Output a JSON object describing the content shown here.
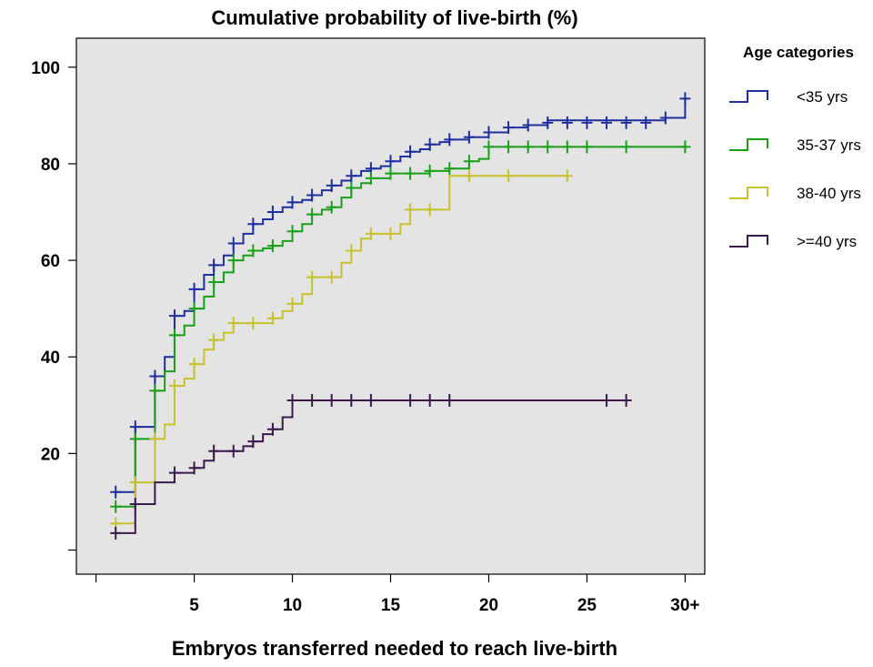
{
  "chart_data": {
    "type": "line",
    "step": true,
    "title": "Cumulative probability of live-birth (%)",
    "xlabel": "Embryos transferred needed to reach live-birth",
    "ylabel": "",
    "xlim": [
      -1,
      31
    ],
    "ylim": [
      -5,
      106
    ],
    "x_ticks": [
      0,
      5,
      10,
      15,
      20,
      25,
      30
    ],
    "x_tick_labels": [
      "",
      "5",
      "10",
      "15",
      "20",
      "25",
      "30+"
    ],
    "y_ticks": [
      0,
      20,
      40,
      60,
      80,
      100
    ],
    "y_tick_labels": [
      "",
      "20",
      "40",
      "60",
      "80",
      "100"
    ],
    "grid": false,
    "background": "#e4e4e4",
    "legend": {
      "title": "Age categories",
      "position": "right"
    },
    "series": [
      {
        "name": "<35 yrs",
        "color": "#1f2f9e",
        "points": [
          [
            1,
            12
          ],
          [
            2,
            25.5
          ],
          [
            3,
            36
          ],
          [
            3.5,
            40
          ],
          [
            4,
            48.5
          ],
          [
            4.5,
            49.5
          ],
          [
            5,
            54
          ],
          [
            5.5,
            57
          ],
          [
            6,
            59
          ],
          [
            6.5,
            61
          ],
          [
            7,
            63.5
          ],
          [
            7.5,
            65.5
          ],
          [
            8,
            67.5
          ],
          [
            8.5,
            68.5
          ],
          [
            9,
            70
          ],
          [
            9.5,
            71
          ],
          [
            10,
            72
          ],
          [
            10.5,
            72.5
          ],
          [
            11,
            73.5
          ],
          [
            11.5,
            74.5
          ],
          [
            12,
            75.5
          ],
          [
            12.5,
            76.5
          ],
          [
            13,
            77.5
          ],
          [
            13.5,
            78.5
          ],
          [
            14,
            79
          ],
          [
            14.5,
            79.5
          ],
          [
            15,
            80.5
          ],
          [
            15.5,
            81.5
          ],
          [
            16,
            82.5
          ],
          [
            16.5,
            83
          ],
          [
            17,
            84
          ],
          [
            17.5,
            84.5
          ],
          [
            18,
            85
          ],
          [
            19,
            85.5
          ],
          [
            20,
            86.5
          ],
          [
            21,
            87.5
          ],
          [
            22,
            88
          ],
          [
            23,
            89
          ],
          [
            29,
            89.5
          ],
          [
            30,
            93.5
          ]
        ],
        "censored": [
          [
            1,
            12
          ],
          [
            2,
            25.5
          ],
          [
            3,
            36
          ],
          [
            4,
            48.5
          ],
          [
            5,
            54
          ],
          [
            6,
            59
          ],
          [
            7,
            63.5
          ],
          [
            8,
            67.5
          ],
          [
            9,
            70
          ],
          [
            10,
            72
          ],
          [
            11,
            73.5
          ],
          [
            12,
            75.5
          ],
          [
            13,
            77.5
          ],
          [
            14,
            79
          ],
          [
            15,
            80.5
          ],
          [
            16,
            82.5
          ],
          [
            17,
            84
          ],
          [
            18,
            85
          ],
          [
            19,
            85.5
          ],
          [
            20,
            86.5
          ],
          [
            21,
            87.5
          ],
          [
            22,
            88
          ],
          [
            23,
            88.5
          ],
          [
            24,
            88.5
          ],
          [
            25,
            88.5
          ],
          [
            26,
            88.5
          ],
          [
            27,
            88.5
          ],
          [
            28,
            88.5
          ],
          [
            29,
            89.5
          ],
          [
            30,
            93.5
          ]
        ]
      },
      {
        "name": "35-37 yrs",
        "color": "#18a018",
        "points": [
          [
            1,
            9
          ],
          [
            2,
            23
          ],
          [
            3,
            33
          ],
          [
            3.5,
            37
          ],
          [
            4,
            44.5
          ],
          [
            4.5,
            46.5
          ],
          [
            5,
            50
          ],
          [
            5.5,
            52.5
          ],
          [
            6,
            55.5
          ],
          [
            6.5,
            57.5
          ],
          [
            7,
            60
          ],
          [
            7.5,
            61
          ],
          [
            8,
            62
          ],
          [
            8.5,
            62.5
          ],
          [
            9,
            63
          ],
          [
            9.5,
            64
          ],
          [
            10,
            66
          ],
          [
            10.5,
            67.5
          ],
          [
            11,
            69.5
          ],
          [
            11.5,
            70.5
          ],
          [
            12,
            71
          ],
          [
            12.5,
            73
          ],
          [
            13,
            75
          ],
          [
            13.5,
            76
          ],
          [
            14,
            77
          ],
          [
            15,
            78
          ],
          [
            17,
            78.5
          ],
          [
            18,
            79
          ],
          [
            19,
            80.5
          ],
          [
            19.5,
            81
          ],
          [
            20,
            83.5
          ],
          [
            30,
            83.5
          ]
        ],
        "censored": [
          [
            1,
            9
          ],
          [
            2,
            23
          ],
          [
            3,
            33
          ],
          [
            4,
            44.5
          ],
          [
            5,
            50
          ],
          [
            6,
            55.5
          ],
          [
            7,
            60
          ],
          [
            8,
            62
          ],
          [
            9,
            63
          ],
          [
            10,
            66
          ],
          [
            11,
            69.5
          ],
          [
            12,
            71
          ],
          [
            13,
            75
          ],
          [
            14,
            77
          ],
          [
            15,
            78
          ],
          [
            16,
            78
          ],
          [
            17,
            78.5
          ],
          [
            18,
            79
          ],
          [
            19,
            80.5
          ],
          [
            20,
            83.5
          ],
          [
            21,
            83.5
          ],
          [
            22,
            83.5
          ],
          [
            23,
            83.5
          ],
          [
            24,
            83.5
          ],
          [
            25,
            83.5
          ],
          [
            27,
            83.5
          ],
          [
            30,
            83.5
          ]
        ]
      },
      {
        "name": "38-40 yrs",
        "color": "#c6c12d",
        "points": [
          [
            1,
            5.5
          ],
          [
            2,
            14
          ],
          [
            3,
            23
          ],
          [
            3.5,
            26
          ],
          [
            4,
            34
          ],
          [
            4.5,
            35.5
          ],
          [
            5,
            38.5
          ],
          [
            5.5,
            41.5
          ],
          [
            6,
            43.5
          ],
          [
            6.5,
            45
          ],
          [
            7,
            47
          ],
          [
            8,
            47
          ],
          [
            9,
            48
          ],
          [
            9.5,
            49.5
          ],
          [
            10,
            51
          ],
          [
            10.5,
            53
          ],
          [
            11,
            56.5
          ],
          [
            12,
            56.5
          ],
          [
            12.5,
            59.5
          ],
          [
            13,
            62
          ],
          [
            13.5,
            64.5
          ],
          [
            14,
            65.5
          ],
          [
            15,
            65.5
          ],
          [
            15.5,
            67.5
          ],
          [
            16,
            70.5
          ],
          [
            18,
            77.5
          ],
          [
            24,
            77.5
          ]
        ],
        "censored": [
          [
            1,
            5.5
          ],
          [
            2,
            14
          ],
          [
            3,
            23
          ],
          [
            4,
            34
          ],
          [
            5,
            38.5
          ],
          [
            6,
            43.5
          ],
          [
            7,
            47
          ],
          [
            8,
            47
          ],
          [
            9,
            48
          ],
          [
            10,
            51
          ],
          [
            11,
            56.5
          ],
          [
            12,
            56.5
          ],
          [
            13,
            62
          ],
          [
            14,
            65.5
          ],
          [
            15,
            65.5
          ],
          [
            16,
            70.5
          ],
          [
            17,
            70.5
          ],
          [
            19,
            77.5
          ],
          [
            21,
            77.5
          ],
          [
            24,
            77.5
          ]
        ]
      },
      {
        "name": ">=40 yrs",
        "color": "#3a1a4a",
        "points": [
          [
            1,
            3.5
          ],
          [
            2,
            9.5
          ],
          [
            3,
            14
          ],
          [
            4,
            16
          ],
          [
            5,
            17
          ],
          [
            5.5,
            18.5
          ],
          [
            6,
            20.5
          ],
          [
            7,
            20.5
          ],
          [
            7.5,
            21.5
          ],
          [
            8,
            22.5
          ],
          [
            8.5,
            24
          ],
          [
            9,
            25
          ],
          [
            9.5,
            27.5
          ],
          [
            10,
            31
          ],
          [
            27,
            31
          ]
        ],
        "censored": [
          [
            1,
            3.5
          ],
          [
            2,
            9.5
          ],
          [
            4,
            16
          ],
          [
            5,
            17
          ],
          [
            6,
            20.5
          ],
          [
            7,
            20.5
          ],
          [
            8,
            22.5
          ],
          [
            9,
            25
          ],
          [
            10,
            31
          ],
          [
            11,
            31
          ],
          [
            12,
            31
          ],
          [
            13,
            31
          ],
          [
            14,
            31
          ],
          [
            16,
            31
          ],
          [
            17,
            31
          ],
          [
            18,
            31
          ],
          [
            26,
            31
          ],
          [
            27,
            31
          ]
        ]
      }
    ]
  }
}
